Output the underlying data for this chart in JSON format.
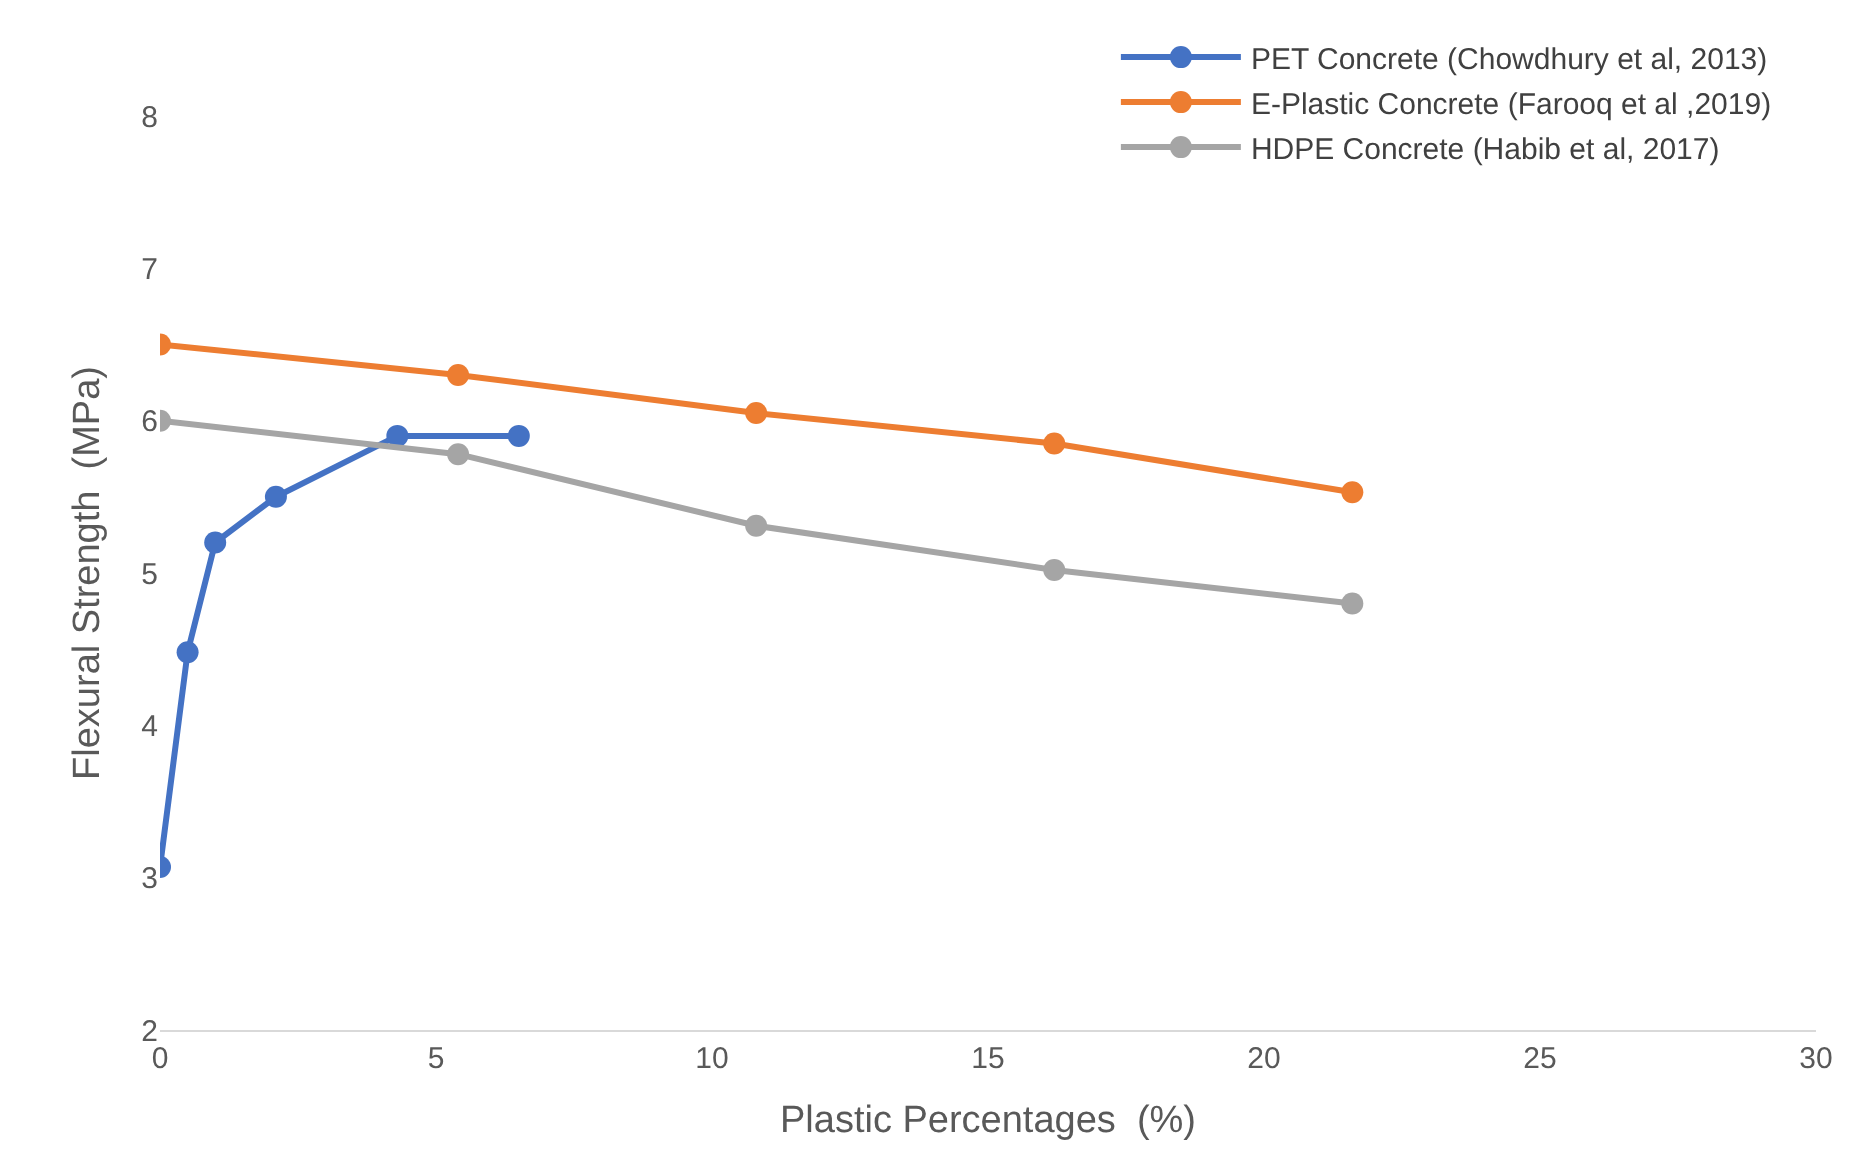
{
  "chart_data": {
    "type": "line",
    "xlabel": "Plastic Percentages  (%)",
    "ylabel": "Flexural Strength  (MPa)",
    "xlim": [
      0,
      30
    ],
    "xticks": [
      0,
      5,
      10,
      15,
      20,
      25,
      30
    ],
    "ylim": [
      2,
      8
    ],
    "yticks": [
      2,
      3,
      4,
      5,
      6,
      7,
      8
    ],
    "grid": false,
    "legend": "top right",
    "marker": "circle",
    "line_style": "solid",
    "series": [
      {
        "name": "PET Concrete (Chowdhury et al, 2013)",
        "color": "#4472c4",
        "x": [
          0,
          0.5,
          1.0,
          2.1,
          4.3,
          6.5
        ],
        "values": [
          3.07,
          4.48,
          5.2,
          5.5,
          5.9,
          5.9
        ]
      },
      {
        "name": "E-Plastic Concrete (Farooq et al ,2019)",
        "color": "#ed7d31",
        "x": [
          0,
          5.4,
          10.8,
          16.2,
          21.6
        ],
        "values": [
          6.5,
          6.3,
          6.05,
          5.85,
          5.53
        ]
      },
      {
        "name": "HDPE Concrete (Habib et al, 2017)",
        "color": "#a5a5a5",
        "x": [
          0,
          5.4,
          10.8,
          16.2,
          21.6
        ],
        "values": [
          6.0,
          5.78,
          5.31,
          5.02,
          4.8
        ]
      }
    ]
  }
}
